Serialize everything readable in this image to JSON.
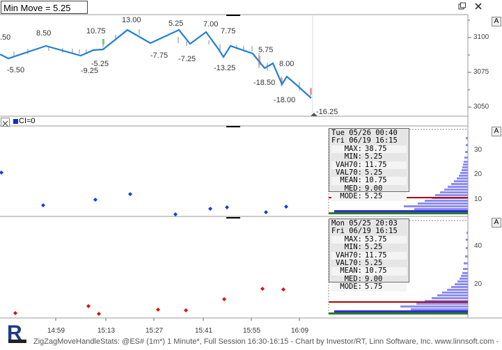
{
  "window": {
    "title": "Min Move = 5.25",
    "restore_icon": "restore-icon",
    "close_icon": "close-icon"
  },
  "autoscale_label": "A",
  "main_chart": {
    "y_ticks": [
      "3100",
      "3075",
      "3050"
    ],
    "zigzag_labels": {
      "highs": [
        "8.50",
        "10.75",
        "13.00",
        "5.25",
        "7.00",
        "7.75",
        "5.75",
        "8.00"
      ],
      "lows": [
        "-5.50",
        "-9.25",
        "-5.25",
        "-7.75",
        "-7.25",
        "-13.25",
        "-18.50",
        "-18.00",
        "-16.25"
      ],
      "left_cut": ".50"
    },
    "line_color": "#1f7fd6"
  },
  "ci_bar": {
    "label": "CI=0",
    "close_icon": "close-small-icon"
  },
  "panel1": {
    "y_ticks": [
      "30",
      "20",
      "10"
    ],
    "dot_color": "#1040e0",
    "stats": {
      "from": "Tue 05/26 00:40",
      "to": "Fri 06/19 16:15",
      "rows": [
        {
          "k": "MAX:",
          "v": "38.75"
        },
        {
          "k": "MIN:",
          "v": "5.25"
        },
        {
          "k": "VAH70:",
          "v": "11.75"
        },
        {
          "k": "VAL70:",
          "v": "5.25"
        },
        {
          "k": "MEAN:",
          "v": "10.75"
        },
        {
          "k": "MED:",
          "v": "9.00"
        },
        {
          "k": "MODE:",
          "v": "5.25"
        }
      ]
    }
  },
  "panel2": {
    "y_ticks": [
      "40",
      "20"
    ],
    "dot_color": "#e01010",
    "stats": {
      "from": "Mon 05/25 20:03",
      "to": "Fri 06/19 16:15",
      "rows": [
        {
          "k": "MAX:",
          "v": "53.75"
        },
        {
          "k": "MIN:",
          "v": "5.25"
        },
        {
          "k": "VAH70:",
          "v": "11.75"
        },
        {
          "k": "VAL70:",
          "v": "5.25"
        },
        {
          "k": "MEAN:",
          "v": "10.75"
        },
        {
          "k": "MED:",
          "v": "9.00"
        },
        {
          "k": "MODE:",
          "v": "5.75"
        }
      ]
    }
  },
  "x_axis": [
    "14:59",
    "15:13",
    "15:27",
    "15:41",
    "15:55",
    "16:09"
  ],
  "footer": "ZigZagMoveHandleStats: @ES# (1m*) 1 Minute*, Full Session 16:30-16:15 - Chart by Investor/RT, Linn Software, Inc. www.linnsoft.com -",
  "logo": "R"
}
